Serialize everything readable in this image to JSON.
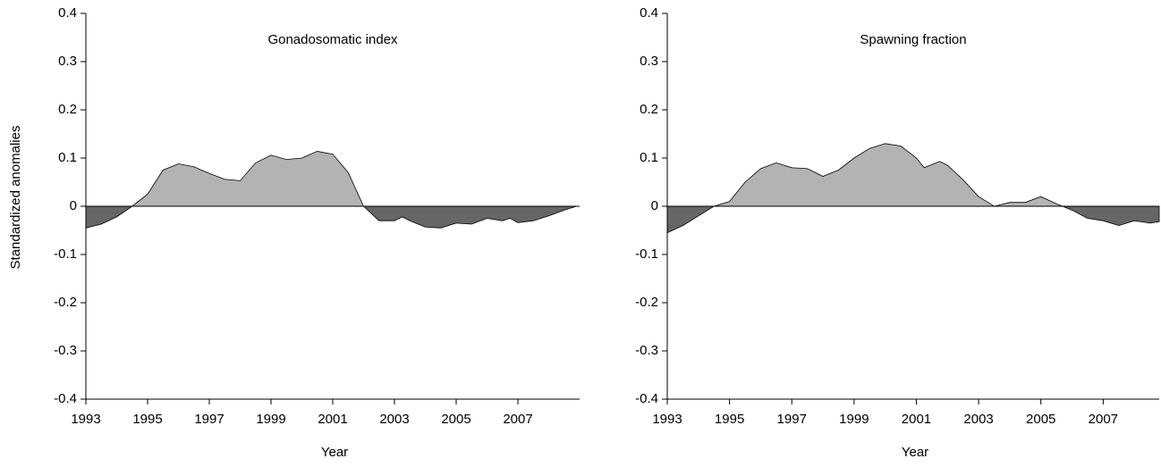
{
  "chart_data": [
    {
      "type": "area",
      "title": "Gonadosomatic index",
      "xlabel": "Year",
      "ylabel": "Standardized anomalies",
      "color_positive": "#b3b3b3",
      "color_negative": "#666666",
      "x": [
        1993,
        1993.5,
        1994,
        1994.5,
        1995,
        1995.5,
        1996,
        1996.5,
        1997,
        1997.5,
        1998,
        1998.5,
        1999,
        1999.5,
        2000,
        2000.5,
        2001,
        2001.5,
        2002,
        2002.5,
        2003,
        2003.25,
        2003.5,
        2004,
        2004.5,
        2005,
        2005.5,
        2006,
        2006.5,
        2006.75,
        2007,
        2007.5,
        2008,
        2008.5,
        2008.9
      ],
      "values": [
        -0.045,
        -0.037,
        -0.022,
        0.0,
        0.025,
        0.075,
        0.088,
        0.082,
        0.068,
        0.056,
        0.053,
        0.09,
        0.106,
        0.097,
        0.1,
        0.114,
        0.108,
        0.07,
        0.0,
        -0.03,
        -0.03,
        -0.022,
        -0.03,
        -0.043,
        -0.045,
        -0.035,
        -0.037,
        -0.025,
        -0.03,
        -0.025,
        -0.034,
        -0.03,
        -0.02,
        -0.008,
        0.0
      ],
      "xlim": [
        1993,
        2009
      ],
      "xticks": [
        1993,
        1995,
        1997,
        1999,
        2001,
        2003,
        2005,
        2007
      ],
      "ylim": [
        -0.4,
        0.4
      ],
      "yticks": [
        -0.4,
        -0.3,
        -0.2,
        -0.1,
        0,
        0.1,
        0.2,
        0.3,
        0.4
      ]
    },
    {
      "type": "area",
      "title": "Spawning fraction",
      "xlabel": "Year",
      "color_positive": "#b3b3b3",
      "color_negative": "#666666",
      "x": [
        1993,
        1993.5,
        1994,
        1994.5,
        1995,
        1995.5,
        1996,
        1996.5,
        1997,
        1997.5,
        1998,
        1998.5,
        1999,
        1999.5,
        2000,
        2000.5,
        2001,
        2001.25,
        2001.75,
        2002,
        2002.5,
        2003,
        2003.5,
        2004,
        2004.5,
        2005,
        2005.5,
        2006,
        2006.5,
        2007,
        2007.5,
        2008,
        2008.5,
        2008.8
      ],
      "values": [
        -0.055,
        -0.04,
        -0.02,
        0.0,
        0.01,
        0.05,
        0.078,
        0.09,
        0.08,
        0.078,
        0.062,
        0.075,
        0.1,
        0.12,
        0.13,
        0.125,
        0.1,
        0.08,
        0.093,
        0.085,
        0.055,
        0.02,
        0.0,
        0.008,
        0.008,
        0.02,
        0.005,
        -0.008,
        -0.025,
        -0.03,
        -0.04,
        -0.03,
        -0.035,
        -0.032
      ],
      "xlim": [
        1993,
        2008.8
      ],
      "xticks": [
        1993,
        1995,
        1997,
        1999,
        2001,
        2003,
        2005,
        2007
      ],
      "ylim": [
        -0.4,
        0.4
      ],
      "yticks": [
        -0.4,
        -0.3,
        -0.2,
        -0.1,
        0,
        0.1,
        0.2,
        0.3,
        0.4
      ]
    }
  ]
}
